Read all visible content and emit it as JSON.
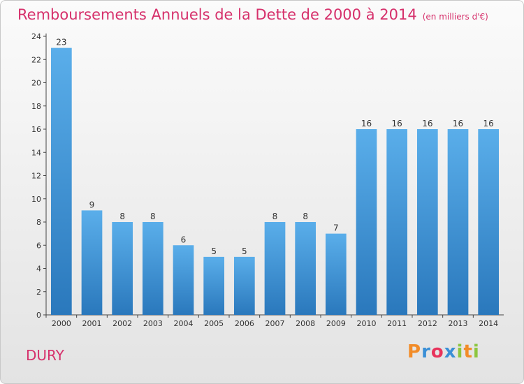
{
  "header": {
    "title": "Remboursements Annuels de la Dette de 2000 à 2014",
    "unit": "(en milliers d'€)"
  },
  "footer": {
    "commune": "DURY",
    "brand": "Proxiti"
  },
  "colors": {
    "title": "#d6306b",
    "bar_top": "#5aaeea",
    "bar_bottom": "#2a78bc",
    "brand_letters": [
      "#f28c28",
      "#3a8fd6",
      "#e8335b",
      "#3a8fd6",
      "#8cc63f",
      "#f28c28",
      "#8cc63f"
    ]
  },
  "chart_data": {
    "type": "bar",
    "title": "Remboursements Annuels de la Dette de 2000 à 2014",
    "xlabel": "",
    "ylabel": "",
    "categories": [
      "2000",
      "2001",
      "2002",
      "2003",
      "2004",
      "2005",
      "2006",
      "2007",
      "2008",
      "2009",
      "2010",
      "2011",
      "2012",
      "2013",
      "2014"
    ],
    "values": [
      23,
      9,
      8,
      8,
      6,
      5,
      5,
      8,
      8,
      7,
      16,
      16,
      16,
      16,
      16
    ],
    "ylim": [
      0,
      24
    ],
    "yticks": [
      0,
      2,
      4,
      6,
      8,
      10,
      12,
      14,
      16,
      18,
      20,
      22,
      24
    ],
    "grid": false,
    "legend": "none"
  }
}
